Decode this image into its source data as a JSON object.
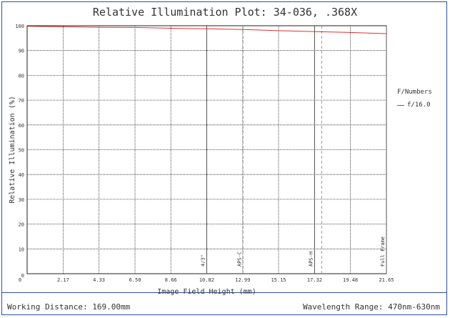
{
  "title": "Relative Illumination Plot: 34-036, .368X",
  "footer": {
    "working_distance": "Working Distance: 169.00mm",
    "wavelength_range": "Wavelength Range: 470nm-630nm"
  },
  "legend": {
    "title": "F/Numbers",
    "entries": [
      {
        "label": "f/16.0",
        "color": "#e03030"
      }
    ]
  },
  "chart_data": {
    "type": "line",
    "xlabel": "Image Field Height (mm)",
    "ylabel": "Relative Illumination (%)",
    "xlim": [
      0,
      21.65
    ],
    "ylim": [
      0,
      100
    ],
    "x_ticks": [
      "0",
      "2.17",
      "4.33",
      "6.50",
      "8.66",
      "10.82",
      "12.99",
      "15.15",
      "17.32",
      "19.48",
      "21.65"
    ],
    "y_ticks": [
      "0",
      "10",
      "20",
      "30",
      "40",
      "50",
      "60",
      "70",
      "80",
      "90",
      "100"
    ],
    "grid": true,
    "legend_position": "right",
    "series": [
      {
        "name": "f/16.0",
        "color": "#e03030",
        "x": [
          0,
          2.17,
          4.33,
          6.5,
          8.66,
          10.82,
          12.99,
          15.15,
          17.32,
          19.48,
          21.65
        ],
        "y": [
          99.8,
          99.6,
          99.4,
          99.3,
          99.0,
          98.8,
          98.5,
          98.0,
          97.6,
          97.3,
          96.8
        ]
      }
    ],
    "sensor_markers": [
      {
        "label": "4/3\"",
        "x": 10.82,
        "style": "solid"
      },
      {
        "label": "APS-C",
        "x": 13.01,
        "style": "dashed"
      },
      {
        "label": "APS-H",
        "x": 17.32,
        "style": "solid"
      },
      {
        "label": "",
        "x": 17.75,
        "style": "dashed"
      },
      {
        "label": "Full Frame",
        "x": 21.65,
        "style": "solid"
      }
    ]
  }
}
